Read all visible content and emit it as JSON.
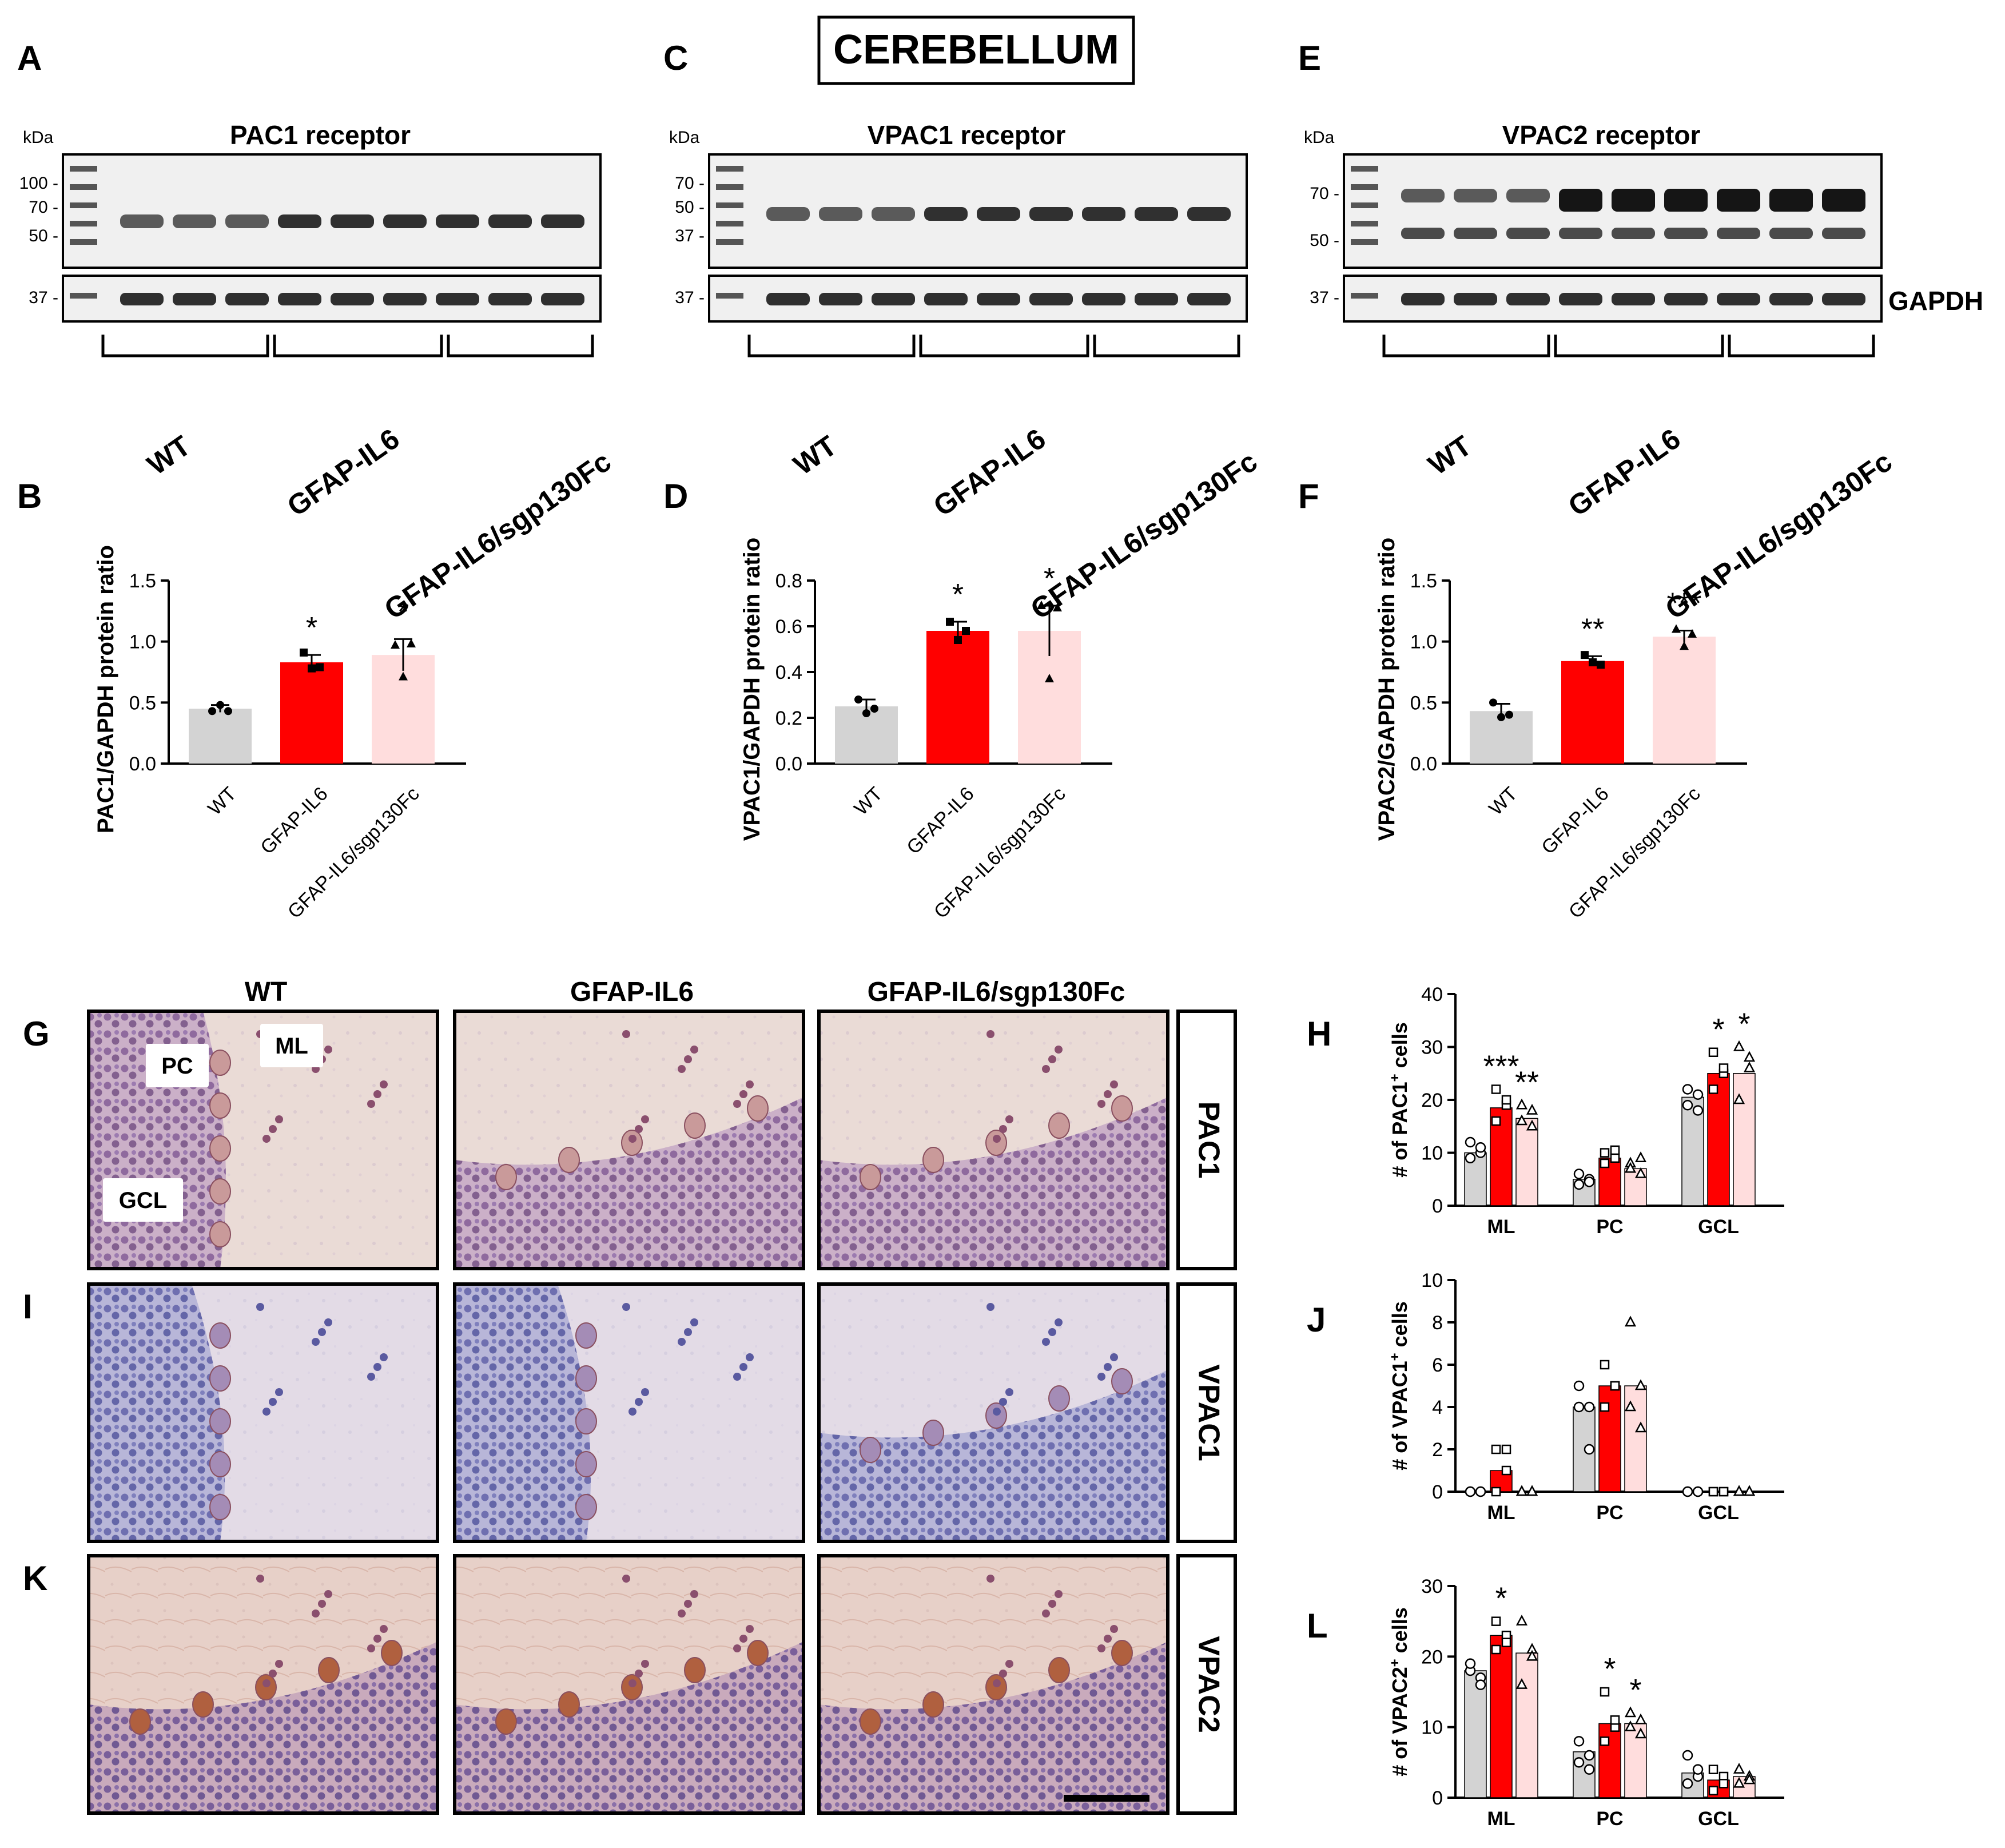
{
  "figure_title": "CEREBELLUM",
  "units": {
    "kda": "kDa"
  },
  "group_labels": [
    "WT",
    "GFAP-IL6",
    "GFAP-IL6/sgp130Fc"
  ],
  "blots": [
    {
      "letter": "A",
      "title": "PAC1 receptor",
      "markers": [
        "100 -",
        "70 -",
        "50 -"
      ],
      "loading_marker": "37 -"
    },
    {
      "letter": "C",
      "title": "VPAC1 receptor",
      "markers": [
        "70 -",
        "50 -",
        "37 -"
      ],
      "loading_marker": "37 -"
    },
    {
      "letter": "E",
      "title": "VPAC2 receptor",
      "markers": [
        "70 -",
        "50 -"
      ],
      "loading_marker": "37 -",
      "loading_label": "GAPDH"
    }
  ],
  "ihc": {
    "columns": [
      "WT",
      "GFAP-IL6",
      "GFAP-IL6/sgp130Fc"
    ],
    "rows": [
      {
        "letter": "G",
        "stain": "PAC1"
      },
      {
        "letter": "I",
        "stain": "VPAC1"
      },
      {
        "letter": "K",
        "stain": "VPAC2"
      }
    ],
    "layer_labels": {
      "pc": "PC",
      "ml": "ML",
      "gcl": "GCL"
    }
  },
  "colors": {
    "wt": "#d3d3d3",
    "il6": "#ff0000",
    "sgp": "#ffdddd"
  },
  "chart_data": [
    {
      "panel": "B",
      "type": "bar",
      "categories": [
        "WT",
        "GFAP-IL6",
        "GFAP-IL6/sgp130Fc"
      ],
      "values": [
        0.45,
        0.83,
        0.89
      ],
      "errors": [
        0.03,
        0.06,
        0.13
      ],
      "points": [
        [
          0.43,
          0.48,
          0.43
        ],
        [
          0.91,
          0.78,
          0.79
        ],
        [
          0.97,
          0.71,
          0.98
        ]
      ],
      "significance": [
        "",
        "*",
        "*"
      ],
      "ylabel": "PAC1/GAPDH protein ratio",
      "ylim": [
        0,
        1.5
      ],
      "yticks": [
        0.0,
        0.5,
        1.0,
        1.5
      ],
      "ytick_labels": [
        "0.0",
        "0.5",
        "1.0",
        "1.5"
      ]
    },
    {
      "panel": "D",
      "type": "bar",
      "categories": [
        "WT",
        "GFAP-IL6",
        "GFAP-IL6/sgp130Fc"
      ],
      "values": [
        0.25,
        0.58,
        0.58
      ],
      "errors": [
        0.03,
        0.04,
        0.11
      ],
      "points": [
        [
          0.28,
          0.22,
          0.24
        ],
        [
          0.62,
          0.54,
          0.58
        ],
        [
          0.69,
          0.37,
          0.68
        ]
      ],
      "significance": [
        "",
        "*",
        "*"
      ],
      "ylabel": "VPAC1/GAPDH protein ratio",
      "ylim": [
        0,
        0.8
      ],
      "yticks": [
        0.0,
        0.2,
        0.4,
        0.6,
        0.8
      ],
      "ytick_labels": [
        "0.0",
        "0.2",
        "0.4",
        "0.6",
        "0.8"
      ]
    },
    {
      "panel": "F",
      "type": "bar",
      "categories": [
        "WT",
        "GFAP-IL6",
        "GFAP-IL6/sgp130Fc"
      ],
      "values": [
        0.43,
        0.84,
        1.04
      ],
      "errors": [
        0.06,
        0.04,
        0.05
      ],
      "points": [
        [
          0.5,
          0.38,
          0.4
        ],
        [
          0.89,
          0.83,
          0.81
        ],
        [
          1.1,
          0.96,
          1.06
        ]
      ],
      "significance": [
        "",
        "**",
        "***"
      ],
      "ylabel": "VPAC2/GAPDH protein ratio",
      "ylim": [
        0,
        1.5
      ],
      "yticks": [
        0.0,
        0.5,
        1.0,
        1.5
      ],
      "ytick_labels": [
        "0.0",
        "0.5",
        "1.0",
        "1.5"
      ]
    },
    {
      "panel": "H",
      "type": "bar",
      "groups": [
        "ML",
        "PC",
        "GCL"
      ],
      "series": [
        {
          "name": "WT",
          "values": [
            10,
            5,
            20.5
          ],
          "points": [
            [
              9,
              10,
              12,
              11
            ],
            [
              4,
              5,
              6,
              4.5
            ],
            [
              19,
              21,
              22,
              18
            ]
          ]
        },
        {
          "name": "GFAP-IL6",
          "values": [
            18.5,
            9,
            25
          ],
          "points": [
            [
              22,
              19,
              16,
              20
            ],
            [
              10,
              9,
              8,
              10.5
            ],
            [
              29,
              25,
              22,
              26
            ]
          ]
        },
        {
          "name": "GFAP-IL6/sgp130Fc",
          "values": [
            16.5,
            7,
            25
          ],
          "points": [
            [
              19,
              15,
              16,
              18
            ],
            [
              8,
              6,
              7,
              9
            ],
            [
              30,
              26,
              20,
              28
            ]
          ]
        }
      ],
      "significance": [
        [
          "",
          "***",
          "**"
        ],
        [
          "",
          "",
          ""
        ],
        [
          "",
          "*",
          "*"
        ]
      ],
      "ylabel_pre": "# of PAC1",
      "ylabel_sup": "+",
      "ylabel_post": " cells",
      "ylim": [
        0,
        40
      ],
      "yticks": [
        0,
        10,
        20,
        30,
        40
      ],
      "ytick_labels": [
        "0",
        "10",
        "20",
        "30",
        "40"
      ]
    },
    {
      "panel": "J",
      "type": "bar",
      "groups": [
        "ML",
        "PC",
        "GCL"
      ],
      "series": [
        {
          "name": "WT",
          "values": [
            0,
            4,
            0
          ],
          "points": [
            [
              0,
              0,
              0,
              0
            ],
            [
              5,
              4,
              4,
              2
            ],
            [
              0,
              0,
              0,
              0
            ]
          ]
        },
        {
          "name": "GFAP-IL6",
          "values": [
            1,
            5,
            0
          ],
          "points": [
            [
              2,
              2,
              0,
              1
            ],
            [
              6,
              5,
              4,
              5
            ],
            [
              0,
              0,
              0,
              0
            ]
          ]
        },
        {
          "name": "GFAP-IL6/sgp130Fc",
          "values": [
            0,
            5,
            0
          ],
          "points": [
            [
              0,
              0,
              0,
              0
            ],
            [
              8,
              5,
              4,
              3
            ],
            [
              0,
              0,
              0,
              0
            ]
          ]
        }
      ],
      "significance": [
        [
          "",
          "",
          ""
        ],
        [
          "",
          "",
          ""
        ],
        [
          "",
          "",
          ""
        ]
      ],
      "ylabel_pre": "# of VPAC1",
      "ylabel_sup": "+",
      "ylabel_post": " cells",
      "ylim": [
        0,
        10
      ],
      "yticks": [
        0,
        2,
        4,
        6,
        8,
        10
      ],
      "ytick_labels": [
        "0",
        "2",
        "4",
        "6",
        "8",
        "10"
      ]
    },
    {
      "panel": "L",
      "type": "bar",
      "groups": [
        "ML",
        "PC",
        "GCL"
      ],
      "series": [
        {
          "name": "WT",
          "values": [
            18,
            6.5,
            3.5
          ],
          "points": [
            [
              18,
              17,
              19,
              16
            ],
            [
              8,
              6,
              5,
              4
            ],
            [
              6,
              3,
              2,
              4
            ]
          ]
        },
        {
          "name": "GFAP-IL6",
          "values": [
            23,
            10.5,
            2.5
          ],
          "points": [
            [
              25,
              23,
              21,
              22
            ],
            [
              15,
              10,
              8,
              11
            ],
            [
              4,
              3,
              1,
              2
            ]
          ]
        },
        {
          "name": "GFAP-IL6/sgp130Fc",
          "values": [
            20.5,
            10.5,
            3
          ],
          "points": [
            [
              25,
              21,
              16,
              20
            ],
            [
              12,
              11,
              10,
              9
            ],
            [
              4,
              3,
              2,
              2.5
            ]
          ]
        }
      ],
      "significance": [
        [
          "",
          "*",
          ""
        ],
        [
          "",
          "*",
          "*"
        ],
        [
          "",
          "",
          ""
        ]
      ],
      "ylabel_pre": "# of VPAC2",
      "ylabel_sup": "+",
      "ylabel_post": " cells",
      "ylim": [
        0,
        30
      ],
      "yticks": [
        0,
        10,
        20,
        30
      ],
      "ytick_labels": [
        "0",
        "10",
        "20",
        "30"
      ]
    }
  ]
}
